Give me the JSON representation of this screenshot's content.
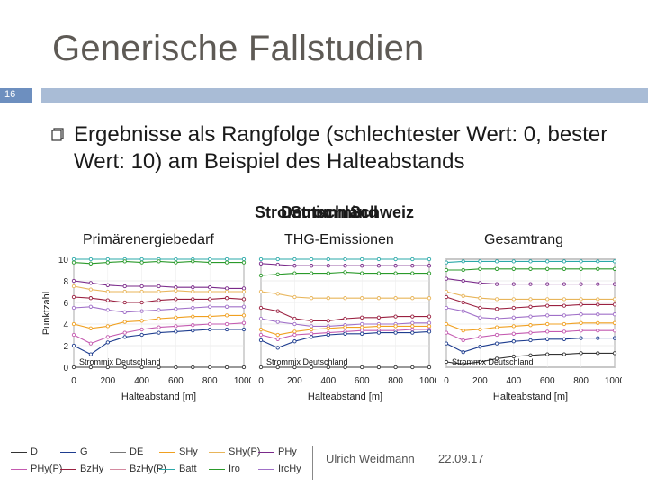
{
  "slide": {
    "title": "Generische Fallstudien",
    "number": "16",
    "bullet_text": "Ergebnisse als Rangfolge (schlechtester Wert: 0, bester Wert: 10) am Beispiel des Halteabstands",
    "overlapping_labels": [
      "Strommix",
      "Deutschland",
      "Strommix",
      "Schweiz"
    ],
    "footer_author": "Ulrich Weidmann",
    "footer_date": "22.09.17",
    "colors": {
      "accent_dark": "#6d8fbf",
      "accent_light": "#a9bcd6",
      "title": "#5e5a55"
    }
  },
  "chart_data": [
    {
      "type": "line",
      "title": "Primärenergiebedarf",
      "xlabel": "Halteabstand [m]",
      "ylabel": "Punktzahl",
      "xlim": [
        0,
        1000
      ],
      "ylim": [
        0,
        10
      ],
      "x": [
        0,
        100,
        200,
        300,
        400,
        500,
        600,
        700,
        800,
        900,
        1000
      ],
      "annotation": "Strommix Deutschland",
      "series": [
        {
          "name": "Batt",
          "values": [
            10,
            10,
            10,
            10,
            10,
            10,
            10,
            10,
            10,
            10,
            10
          ]
        },
        {
          "name": "Iro",
          "values": [
            9.7,
            9.6,
            9.7,
            9.8,
            9.7,
            9.8,
            9.7,
            9.8,
            9.7,
            9.7,
            9.7
          ]
        },
        {
          "name": "PHy",
          "values": [
            8,
            7.8,
            7.6,
            7.5,
            7.5,
            7.5,
            7.4,
            7.4,
            7.4,
            7.3,
            7.3
          ]
        },
        {
          "name": "SHy(P)",
          "values": [
            7.5,
            7.2,
            7,
            7,
            7,
            7,
            7.1,
            7,
            7,
            7,
            7
          ]
        },
        {
          "name": "BzHy",
          "values": [
            6.5,
            6.4,
            6.2,
            6,
            6,
            6.2,
            6.3,
            6.3,
            6.3,
            6.4,
            6.3
          ]
        },
        {
          "name": "IrcHy",
          "values": [
            5.5,
            5.6,
            5.3,
            5.1,
            5.2,
            5.3,
            5.4,
            5.5,
            5.6,
            5.6,
            5.6
          ]
        },
        {
          "name": "SHy",
          "values": [
            4,
            3.6,
            3.8,
            4.2,
            4.3,
            4.5,
            4.6,
            4.7,
            4.7,
            4.8,
            4.8
          ]
        },
        {
          "name": "PHy(P)",
          "values": [
            3,
            2.2,
            2.8,
            3.2,
            3.5,
            3.7,
            3.8,
            3.9,
            4,
            4,
            4.1
          ]
        },
        {
          "name": "G",
          "values": [
            2,
            1.2,
            2.3,
            2.8,
            3,
            3.2,
            3.3,
            3.4,
            3.5,
            3.5,
            3.5
          ]
        },
        {
          "name": "D",
          "values": [
            0,
            0,
            0,
            0,
            0,
            0,
            0,
            0,
            0,
            0,
            0
          ]
        }
      ]
    },
    {
      "type": "line",
      "title": "THG-Emissionen",
      "xlabel": "Halteabstand [m]",
      "ylabel": "",
      "xlim": [
        0,
        1000
      ],
      "ylim": [
        0,
        10
      ],
      "x": [
        0,
        100,
        200,
        300,
        400,
        500,
        600,
        700,
        800,
        900,
        1000
      ],
      "annotation": "Strommix Deutschland",
      "series": [
        {
          "name": "Batt",
          "values": [
            10,
            10,
            10,
            10,
            10,
            10,
            10,
            10,
            10,
            10,
            10
          ]
        },
        {
          "name": "PHy",
          "values": [
            9.6,
            9.5,
            9.4,
            9.4,
            9.4,
            9.4,
            9.4,
            9.4,
            9.4,
            9.4,
            9.4
          ]
        },
        {
          "name": "Iro",
          "values": [
            8.5,
            8.6,
            8.7,
            8.7,
            8.7,
            8.8,
            8.7,
            8.7,
            8.7,
            8.7,
            8.7
          ]
        },
        {
          "name": "SHy(P)",
          "values": [
            7,
            6.8,
            6.5,
            6.4,
            6.4,
            6.4,
            6.4,
            6.4,
            6.4,
            6.4,
            6.4
          ]
        },
        {
          "name": "BzHy",
          "values": [
            5.5,
            5.2,
            4.5,
            4.3,
            4.3,
            4.5,
            4.6,
            4.6,
            4.7,
            4.7,
            4.7
          ]
        },
        {
          "name": "IrcHy",
          "values": [
            4.5,
            4.2,
            4,
            3.8,
            3.8,
            3.9,
            4,
            4,
            4,
            4.1,
            4.1
          ]
        },
        {
          "name": "SHy",
          "values": [
            3.5,
            3,
            3.3,
            3.5,
            3.6,
            3.7,
            3.7,
            3.8,
            3.8,
            3.8,
            3.8
          ]
        },
        {
          "name": "PHy(P)",
          "values": [
            3,
            2.6,
            3,
            3.1,
            3.2,
            3.3,
            3.4,
            3.4,
            3.4,
            3.5,
            3.5
          ]
        },
        {
          "name": "G",
          "values": [
            2.5,
            1.8,
            2.4,
            2.8,
            3,
            3.1,
            3.1,
            3.2,
            3.2,
            3.2,
            3.3
          ]
        },
        {
          "name": "D",
          "values": [
            0,
            0,
            0,
            0,
            0,
            0,
            0,
            0,
            0,
            0,
            0
          ]
        }
      ]
    },
    {
      "type": "line",
      "title": "Gesamtrang",
      "xlabel": "Halteabstand [m]",
      "ylabel": "",
      "xlim": [
        0,
        1000
      ],
      "ylim": [
        0,
        10
      ],
      "x": [
        0,
        100,
        200,
        300,
        400,
        500,
        600,
        700,
        800,
        900,
        1000
      ],
      "annotation": "Strommix Deutschland",
      "series": [
        {
          "name": "Batt",
          "values": [
            9.7,
            9.8,
            9.8,
            9.8,
            9.8,
            9.8,
            9.8,
            9.8,
            9.8,
            9.8,
            9.8
          ]
        },
        {
          "name": "Iro",
          "values": [
            9,
            9,
            9.1,
            9.1,
            9.1,
            9.1,
            9.1,
            9.1,
            9.1,
            9.1,
            9.1
          ]
        },
        {
          "name": "PHy",
          "values": [
            8.2,
            8,
            7.8,
            7.7,
            7.7,
            7.7,
            7.7,
            7.7,
            7.7,
            7.7,
            7.7
          ]
        },
        {
          "name": "SHy(P)",
          "values": [
            7,
            6.6,
            6.4,
            6.3,
            6.3,
            6.3,
            6.3,
            6.3,
            6.3,
            6.3,
            6.3
          ]
        },
        {
          "name": "BzHy",
          "values": [
            6.5,
            6,
            5.5,
            5.4,
            5.5,
            5.6,
            5.7,
            5.7,
            5.8,
            5.8,
            5.8
          ]
        },
        {
          "name": "IrcHy",
          "values": [
            5.5,
            5.2,
            4.6,
            4.5,
            4.6,
            4.7,
            4.8,
            4.8,
            4.9,
            4.9,
            4.9
          ]
        },
        {
          "name": "SHy",
          "values": [
            4,
            3.4,
            3.5,
            3.7,
            3.8,
            3.9,
            4,
            4,
            4.1,
            4.1,
            4.1
          ]
        },
        {
          "name": "PHy(P)",
          "values": [
            3.2,
            2.5,
            2.8,
            3,
            3.1,
            3.2,
            3.3,
            3.3,
            3.4,
            3.4,
            3.4
          ]
        },
        {
          "name": "G",
          "values": [
            2.2,
            1.4,
            1.9,
            2.2,
            2.4,
            2.5,
            2.6,
            2.6,
            2.7,
            2.7,
            2.7
          ]
        },
        {
          "name": "D",
          "values": [
            0.5,
            0.3,
            0.5,
            0.8,
            1,
            1.1,
            1.2,
            1.2,
            1.3,
            1.3,
            1.3
          ]
        }
      ]
    }
  ],
  "legend": {
    "entries": [
      {
        "name": "D",
        "color": "#333333"
      },
      {
        "name": "G",
        "color": "#1e3d8f"
      },
      {
        "name": "DE",
        "color": "#777777"
      },
      {
        "name": "SHy",
        "color": "#f0a020"
      },
      {
        "name": "SHy(P)",
        "color": "#e8b55a"
      },
      {
        "name": "PHy",
        "color": "#7a2a8a"
      },
      {
        "name": "PHy(P)",
        "color": "#c45ab0"
      },
      {
        "name": "BzHy",
        "color": "#9a2040"
      },
      {
        "name": "BzHy(P)",
        "color": "#d48aa0"
      },
      {
        "name": "Batt",
        "color": "#2aa8a8"
      },
      {
        "name": "Iro",
        "color": "#2a9a2a"
      },
      {
        "name": "IrcHy",
        "color": "#a070c8"
      }
    ]
  }
}
